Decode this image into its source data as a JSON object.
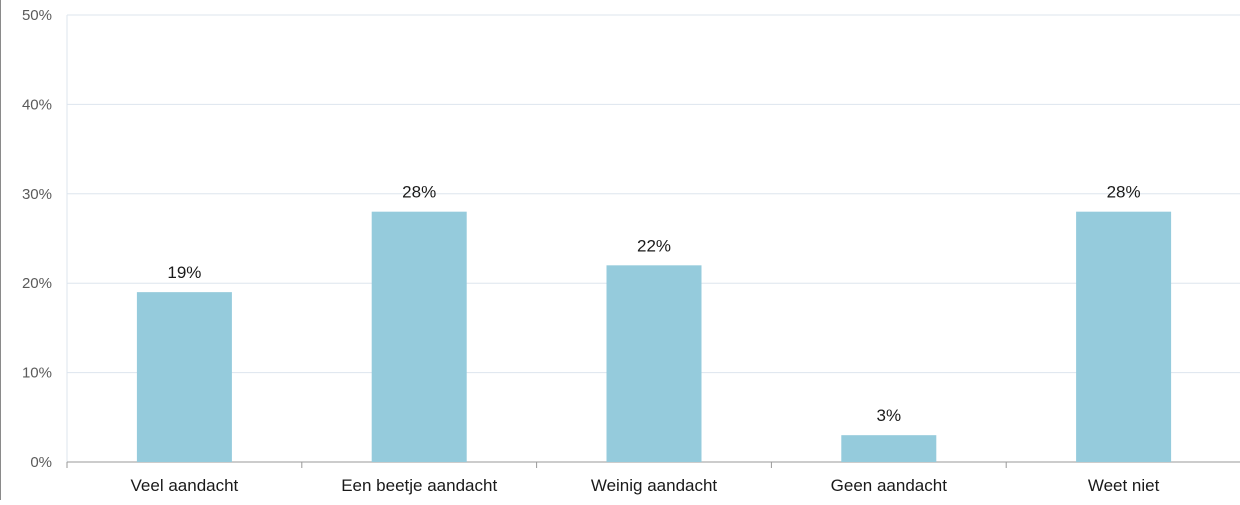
{
  "chart_data": {
    "type": "bar",
    "categories": [
      "Veel aandacht",
      "Een beetje aandacht",
      "Weinig aandacht",
      "Geen aandacht",
      "Weet niet"
    ],
    "values": [
      19,
      28,
      22,
      3,
      28
    ],
    "value_labels": [
      "19%",
      "28%",
      "22%",
      "3%",
      "28%"
    ],
    "y_ticks": [
      "0%",
      "10%",
      "20%",
      "30%",
      "40%",
      "50%"
    ],
    "ylim": [
      0,
      50
    ],
    "grid": true,
    "legend": "none",
    "bar_color": "#95cbdc",
    "grid_color": "#dde5ee",
    "axis_color": "#999999"
  }
}
